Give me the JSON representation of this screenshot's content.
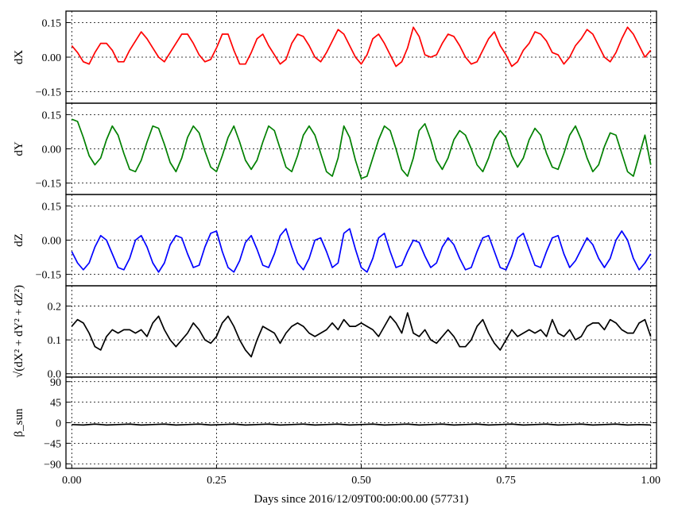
{
  "chart_data": [
    {
      "type": "line",
      "ylabel": "dX",
      "ylim": [
        -0.2,
        0.2
      ],
      "yticks": [
        -0.15,
        0.0,
        0.15
      ],
      "ytick_labels": [
        "−0.15",
        "0.00",
        "0.15"
      ],
      "xlim": [
        -0.01,
        1.01
      ],
      "grid": true,
      "series": [
        {
          "color": "#ff0000",
          "x": [
            0.0,
            0.01,
            0.02,
            0.03,
            0.04,
            0.05,
            0.06,
            0.07,
            0.08,
            0.09,
            0.1,
            0.11,
            0.12,
            0.13,
            0.14,
            0.15,
            0.16,
            0.17,
            0.18,
            0.19,
            0.2,
            0.21,
            0.22,
            0.23,
            0.24,
            0.25,
            0.26,
            0.27,
            0.28,
            0.29,
            0.3,
            0.31,
            0.32,
            0.33,
            0.34,
            0.35,
            0.36,
            0.37,
            0.38,
            0.39,
            0.4,
            0.41,
            0.42,
            0.43,
            0.44,
            0.45,
            0.46,
            0.47,
            0.48,
            0.49,
            0.5,
            0.51,
            0.52,
            0.53,
            0.54,
            0.55,
            0.56,
            0.57,
            0.58,
            0.59,
            0.6,
            0.61,
            0.62,
            0.63,
            0.64,
            0.65,
            0.66,
            0.67,
            0.68,
            0.69,
            0.7,
            0.71,
            0.72,
            0.73,
            0.74,
            0.75,
            0.76,
            0.77,
            0.78,
            0.79,
            0.8,
            0.81,
            0.82,
            0.83,
            0.84,
            0.85,
            0.86,
            0.87,
            0.88,
            0.89,
            0.9,
            0.91,
            0.92,
            0.93,
            0.94,
            0.95,
            0.96,
            0.97,
            0.98,
            0.99,
            1.0
          ],
          "values": [
            0.05,
            0.02,
            -0.02,
            -0.03,
            0.02,
            0.06,
            0.06,
            0.03,
            -0.02,
            -0.02,
            0.03,
            0.07,
            0.11,
            0.08,
            0.04,
            0.0,
            -0.02,
            0.02,
            0.06,
            0.1,
            0.1,
            0.06,
            0.01,
            -0.02,
            -0.01,
            0.04,
            0.1,
            0.1,
            0.03,
            -0.03,
            -0.03,
            0.02,
            0.08,
            0.1,
            0.05,
            0.01,
            -0.03,
            -0.01,
            0.06,
            0.1,
            0.09,
            0.05,
            0.0,
            -0.02,
            0.02,
            0.07,
            0.12,
            0.1,
            0.05,
            0.0,
            -0.03,
            0.01,
            0.08,
            0.1,
            0.06,
            0.01,
            -0.04,
            -0.02,
            0.04,
            0.13,
            0.09,
            0.01,
            0.0,
            0.01,
            0.06,
            0.1,
            0.09,
            0.05,
            0.0,
            -0.03,
            -0.02,
            0.03,
            0.08,
            0.11,
            0.05,
            0.01,
            -0.04,
            -0.02,
            0.03,
            0.06,
            0.11,
            0.1,
            0.07,
            0.02,
            0.01,
            -0.03,
            0.0,
            0.05,
            0.08,
            0.12,
            0.1,
            0.05,
            0.0,
            -0.02,
            0.02,
            0.08,
            0.13,
            0.1,
            0.05,
            0.0,
            0.03
          ]
        }
      ]
    },
    {
      "type": "line",
      "ylabel": "dY",
      "ylim": [
        -0.2,
        0.2
      ],
      "yticks": [
        -0.15,
        0.0,
        0.15
      ],
      "ytick_labels": [
        "−0.15",
        "0.00",
        "0.15"
      ],
      "xlim": [
        -0.01,
        1.01
      ],
      "grid": true,
      "series": [
        {
          "color": "#008000",
          "x": [
            0.0,
            0.01,
            0.02,
            0.03,
            0.04,
            0.05,
            0.06,
            0.07,
            0.08,
            0.09,
            0.1,
            0.11,
            0.12,
            0.13,
            0.14,
            0.15,
            0.16,
            0.17,
            0.18,
            0.19,
            0.2,
            0.21,
            0.22,
            0.23,
            0.24,
            0.25,
            0.26,
            0.27,
            0.28,
            0.29,
            0.3,
            0.31,
            0.32,
            0.33,
            0.34,
            0.35,
            0.36,
            0.37,
            0.38,
            0.39,
            0.4,
            0.41,
            0.42,
            0.43,
            0.44,
            0.45,
            0.46,
            0.47,
            0.48,
            0.49,
            0.5,
            0.51,
            0.52,
            0.53,
            0.54,
            0.55,
            0.56,
            0.57,
            0.58,
            0.59,
            0.6,
            0.61,
            0.62,
            0.63,
            0.64,
            0.65,
            0.66,
            0.67,
            0.68,
            0.69,
            0.7,
            0.71,
            0.72,
            0.73,
            0.74,
            0.75,
            0.76,
            0.77,
            0.78,
            0.79,
            0.8,
            0.81,
            0.82,
            0.83,
            0.84,
            0.85,
            0.86,
            0.87,
            0.88,
            0.89,
            0.9,
            0.91,
            0.92,
            0.93,
            0.94,
            0.95,
            0.96,
            0.97,
            0.98,
            0.99,
            1.0
          ],
          "values": [
            0.13,
            0.12,
            0.05,
            -0.03,
            -0.07,
            -0.04,
            0.04,
            0.1,
            0.06,
            -0.02,
            -0.09,
            -0.1,
            -0.05,
            0.03,
            0.1,
            0.09,
            0.02,
            -0.06,
            -0.1,
            -0.04,
            0.05,
            0.1,
            0.07,
            -0.01,
            -0.08,
            -0.1,
            -0.03,
            0.05,
            0.1,
            0.03,
            -0.05,
            -0.09,
            -0.05,
            0.03,
            0.1,
            0.08,
            0.0,
            -0.08,
            -0.1,
            -0.03,
            0.06,
            0.1,
            0.06,
            -0.02,
            -0.1,
            -0.12,
            -0.04,
            0.1,
            0.05,
            -0.05,
            -0.13,
            -0.12,
            -0.04,
            0.04,
            0.1,
            0.08,
            0.0,
            -0.09,
            -0.12,
            -0.04,
            0.08,
            0.11,
            0.04,
            -0.05,
            -0.09,
            -0.04,
            0.04,
            0.08,
            0.06,
            0.0,
            -0.07,
            -0.1,
            -0.04,
            0.04,
            0.08,
            0.05,
            -0.03,
            -0.08,
            -0.04,
            0.04,
            0.09,
            0.06,
            -0.02,
            -0.08,
            -0.09,
            -0.02,
            0.06,
            0.1,
            0.04,
            -0.04,
            -0.1,
            -0.07,
            0.01,
            0.07,
            0.06,
            -0.02,
            -0.1,
            -0.12,
            -0.03,
            0.06,
            -0.07
          ]
        }
      ]
    },
    {
      "type": "line",
      "ylabel": "dZ",
      "ylim": [
        -0.2,
        0.2
      ],
      "yticks": [
        -0.15,
        0.0,
        0.15
      ],
      "ytick_labels": [
        "−0.15",
        "0.00",
        "0.15"
      ],
      "xlim": [
        -0.01,
        1.01
      ],
      "grid": true,
      "series": [
        {
          "color": "#0000ff",
          "x": [
            0.0,
            0.01,
            0.02,
            0.03,
            0.04,
            0.05,
            0.06,
            0.07,
            0.08,
            0.09,
            0.1,
            0.11,
            0.12,
            0.13,
            0.14,
            0.15,
            0.16,
            0.17,
            0.18,
            0.19,
            0.2,
            0.21,
            0.22,
            0.23,
            0.24,
            0.25,
            0.26,
            0.27,
            0.28,
            0.29,
            0.3,
            0.31,
            0.32,
            0.33,
            0.34,
            0.35,
            0.36,
            0.37,
            0.38,
            0.39,
            0.4,
            0.41,
            0.42,
            0.43,
            0.44,
            0.45,
            0.46,
            0.47,
            0.48,
            0.49,
            0.5,
            0.51,
            0.52,
            0.53,
            0.54,
            0.55,
            0.56,
            0.57,
            0.58,
            0.59,
            0.6,
            0.61,
            0.62,
            0.63,
            0.64,
            0.65,
            0.66,
            0.67,
            0.68,
            0.69,
            0.7,
            0.71,
            0.72,
            0.73,
            0.74,
            0.75,
            0.76,
            0.77,
            0.78,
            0.79,
            0.8,
            0.81,
            0.82,
            0.83,
            0.84,
            0.85,
            0.86,
            0.87,
            0.88,
            0.89,
            0.9,
            0.91,
            0.92,
            0.93,
            0.94,
            0.95,
            0.96,
            0.97,
            0.98,
            0.99,
            1.0
          ],
          "values": [
            -0.05,
            -0.1,
            -0.13,
            -0.1,
            -0.03,
            0.02,
            0.0,
            -0.06,
            -0.12,
            -0.13,
            -0.08,
            0.0,
            0.02,
            -0.03,
            -0.1,
            -0.14,
            -0.1,
            -0.02,
            0.02,
            0.01,
            -0.06,
            -0.12,
            -0.11,
            -0.03,
            0.03,
            0.04,
            -0.05,
            -0.12,
            -0.14,
            -0.09,
            -0.01,
            0.02,
            -0.04,
            -0.11,
            -0.12,
            -0.06,
            0.02,
            0.05,
            -0.03,
            -0.1,
            -0.13,
            -0.08,
            0.0,
            0.01,
            -0.05,
            -0.12,
            -0.1,
            0.03,
            0.05,
            -0.04,
            -0.12,
            -0.14,
            -0.08,
            0.01,
            0.03,
            -0.05,
            -0.12,
            -0.11,
            -0.05,
            0.0,
            -0.01,
            -0.07,
            -0.12,
            -0.1,
            -0.03,
            0.01,
            -0.02,
            -0.08,
            -0.13,
            -0.12,
            -0.05,
            0.01,
            0.02,
            -0.05,
            -0.12,
            -0.13,
            -0.07,
            0.01,
            0.03,
            -0.04,
            -0.11,
            -0.12,
            -0.05,
            0.01,
            0.02,
            -0.06,
            -0.12,
            -0.09,
            -0.04,
            0.01,
            -0.02,
            -0.08,
            -0.12,
            -0.08,
            0.0,
            0.04,
            0.0,
            -0.08,
            -0.13,
            -0.1,
            -0.06
          ]
        }
      ]
    },
    {
      "type": "line",
      "ylabel": "√(dX² + dY² + dZ²)",
      "ylim": [
        -0.01,
        0.26
      ],
      "yticks": [
        0.0,
        0.1,
        0.2
      ],
      "ytick_labels": [
        "0.0",
        "0.1",
        "0.2"
      ],
      "xlim": [
        -0.01,
        1.01
      ],
      "grid": true,
      "series": [
        {
          "color": "#000000",
          "x": [
            0.0,
            0.01,
            0.02,
            0.03,
            0.04,
            0.05,
            0.06,
            0.07,
            0.08,
            0.09,
            0.1,
            0.11,
            0.12,
            0.13,
            0.14,
            0.15,
            0.16,
            0.17,
            0.18,
            0.19,
            0.2,
            0.21,
            0.22,
            0.23,
            0.24,
            0.25,
            0.26,
            0.27,
            0.28,
            0.29,
            0.3,
            0.31,
            0.32,
            0.33,
            0.34,
            0.35,
            0.36,
            0.37,
            0.38,
            0.39,
            0.4,
            0.41,
            0.42,
            0.43,
            0.44,
            0.45,
            0.46,
            0.47,
            0.48,
            0.49,
            0.5,
            0.51,
            0.52,
            0.53,
            0.54,
            0.55,
            0.56,
            0.57,
            0.58,
            0.59,
            0.6,
            0.61,
            0.62,
            0.63,
            0.64,
            0.65,
            0.66,
            0.67,
            0.68,
            0.69,
            0.7,
            0.71,
            0.72,
            0.73,
            0.74,
            0.75,
            0.76,
            0.77,
            0.78,
            0.79,
            0.8,
            0.81,
            0.82,
            0.83,
            0.84,
            0.85,
            0.86,
            0.87,
            0.88,
            0.89,
            0.9,
            0.91,
            0.92,
            0.93,
            0.94,
            0.95,
            0.96,
            0.97,
            0.98,
            0.99,
            1.0
          ],
          "values": [
            0.14,
            0.16,
            0.15,
            0.12,
            0.08,
            0.07,
            0.11,
            0.13,
            0.12,
            0.13,
            0.13,
            0.12,
            0.13,
            0.11,
            0.15,
            0.17,
            0.13,
            0.1,
            0.08,
            0.1,
            0.12,
            0.15,
            0.13,
            0.1,
            0.09,
            0.11,
            0.15,
            0.17,
            0.14,
            0.1,
            0.07,
            0.05,
            0.1,
            0.14,
            0.13,
            0.12,
            0.09,
            0.12,
            0.14,
            0.15,
            0.14,
            0.12,
            0.11,
            0.12,
            0.13,
            0.15,
            0.13,
            0.16,
            0.14,
            0.14,
            0.15,
            0.14,
            0.13,
            0.11,
            0.14,
            0.17,
            0.15,
            0.12,
            0.18,
            0.12,
            0.11,
            0.13,
            0.1,
            0.09,
            0.11,
            0.13,
            0.11,
            0.08,
            0.08,
            0.1,
            0.14,
            0.16,
            0.12,
            0.09,
            0.07,
            0.1,
            0.13,
            0.11,
            0.12,
            0.13,
            0.12,
            0.13,
            0.11,
            0.16,
            0.12,
            0.11,
            0.13,
            0.1,
            0.11,
            0.14,
            0.15,
            0.15,
            0.13,
            0.16,
            0.15,
            0.13,
            0.12,
            0.12,
            0.15,
            0.16,
            0.11
          ]
        }
      ]
    },
    {
      "type": "line",
      "ylabel": "β_sun",
      "ylim": [
        -100,
        100
      ],
      "yticks": [
        -90,
        -45,
        0,
        45,
        90
      ],
      "ytick_labels": [
        "−90",
        "−45",
        "0",
        "45",
        "90"
      ],
      "xlim": [
        -0.01,
        1.01
      ],
      "grid": true,
      "xlabel": "Days since 2016/12/09T00:00:00.00 (57731)",
      "xticks": [
        0.0,
        0.25,
        0.5,
        0.75,
        1.0
      ],
      "xtick_labels": [
        "0.00",
        "0.25",
        "0.50",
        "0.75",
        "1.00"
      ],
      "series": [
        {
          "color": "#000000",
          "x": [
            0.0,
            0.02,
            0.04,
            0.06,
            0.08,
            0.1,
            0.12,
            0.14,
            0.16,
            0.18,
            0.2,
            0.22,
            0.24,
            0.26,
            0.28,
            0.3,
            0.32,
            0.34,
            0.36,
            0.38,
            0.4,
            0.42,
            0.44,
            0.46,
            0.48,
            0.5,
            0.52,
            0.54,
            0.56,
            0.58,
            0.6,
            0.62,
            0.64,
            0.66,
            0.68,
            0.7,
            0.72,
            0.74,
            0.76,
            0.78,
            0.8,
            0.82,
            0.84,
            0.86,
            0.88,
            0.9,
            0.92,
            0.94,
            0.96,
            0.98,
            1.0
          ],
          "values": [
            -4,
            -5,
            -3,
            -5,
            -4,
            -3,
            -5,
            -4,
            -3,
            -5,
            -4,
            -3,
            -5,
            -4,
            -3,
            -5,
            -4,
            -3,
            -5,
            -4,
            -3,
            -5,
            -4,
            -3,
            -5,
            -4,
            -3,
            -5,
            -4,
            -3,
            -5,
            -4,
            -3,
            -5,
            -4,
            -3,
            -5,
            -4,
            -3,
            -5,
            -4,
            -3,
            -5,
            -4,
            -3,
            -5,
            -4,
            -3,
            -5,
            -4,
            -5
          ]
        }
      ]
    }
  ]
}
